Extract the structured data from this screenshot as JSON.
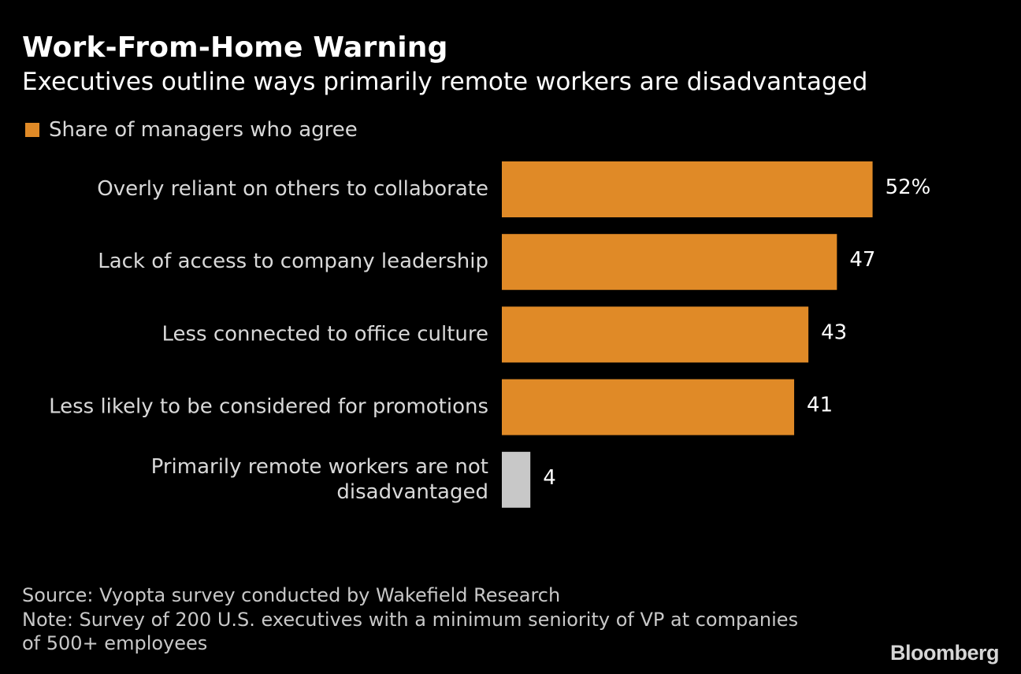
{
  "title": "Work-From-Home Warning",
  "subtitle": "Executives outline ways primarily remote workers are disadvantaged",
  "legend": {
    "label": "Share of managers who agree",
    "color": "#e08a27"
  },
  "chart_data": {
    "type": "bar",
    "orientation": "horizontal",
    "title": "Work-From-Home Warning",
    "subtitle": "Executives outline ways primarily remote workers are disadvantaged",
    "categories": [
      [
        "Overly reliant on others to collaborate"
      ],
      [
        "Lack of access to company leadership"
      ],
      [
        "Less connected to office culture"
      ],
      [
        "Less likely to be considered for promotions"
      ],
      [
        "Primarily remote workers are not",
        "disadvantaged"
      ]
    ],
    "values": [
      52,
      47,
      43,
      41,
      4
    ],
    "value_labels": [
      "52%",
      "47",
      "43",
      "41",
      "4"
    ],
    "colors": [
      "#e08a27",
      "#e08a27",
      "#e08a27",
      "#e08a27",
      "#c8c8c8"
    ],
    "series": [
      {
        "name": "Share of managers who agree",
        "values": [
          52,
          47,
          43,
          41,
          4
        ]
      }
    ],
    "xlim": [
      0,
      60
    ],
    "grid": false,
    "legend_position": "top-left"
  },
  "footnotes": {
    "source": "Source: Vyopta survey conducted by Wakefield Research",
    "note_line1": "Note: Survey of 200 U.S. executives with a minimum seniority of VP at companies",
    "note_line2": "of 500+ employees"
  },
  "logo": "Bloomberg",
  "colors": {
    "background": "#000000",
    "accent": "#e08a27",
    "neutral_bar": "#c8c8c8"
  }
}
